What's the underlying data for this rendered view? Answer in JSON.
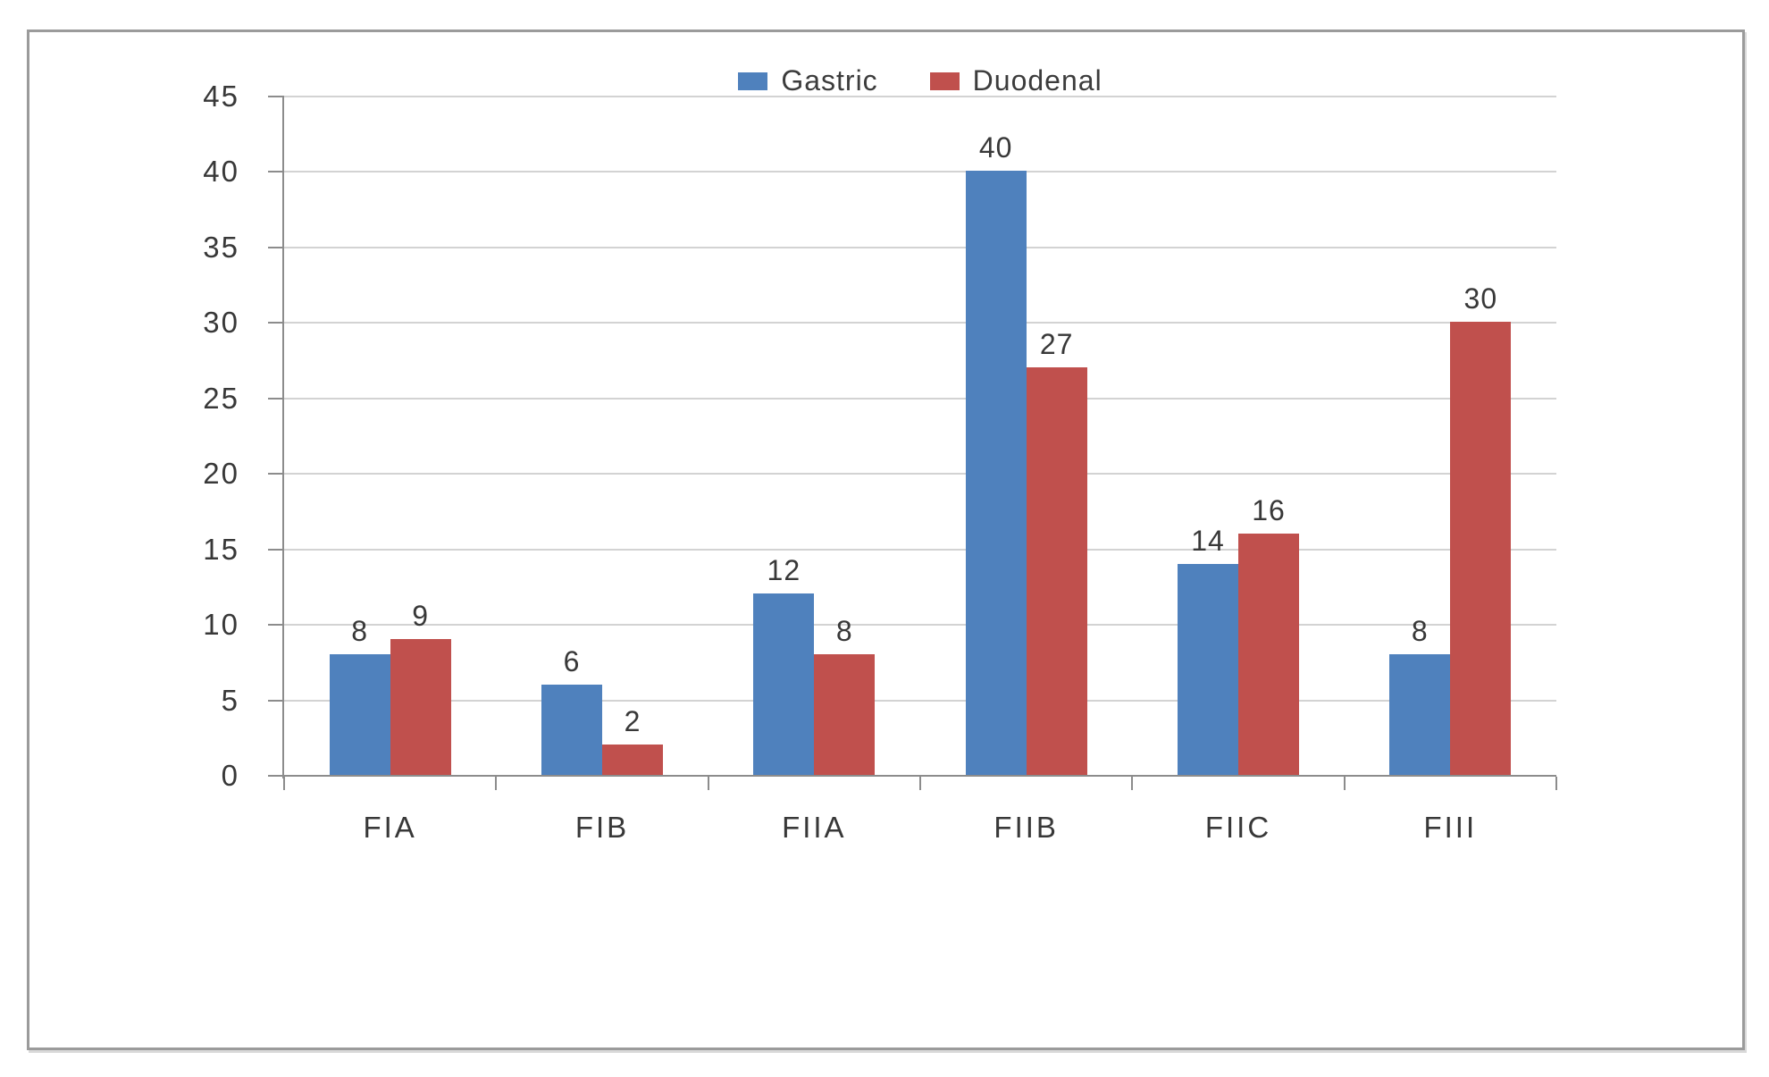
{
  "chart_data": {
    "type": "bar",
    "categories": [
      "FIA",
      "FIB",
      "FIIA",
      "FIIB",
      "FIIC",
      "FIII"
    ],
    "series": [
      {
        "name": "Gastric",
        "color": "#4F81BD",
        "values": [
          8,
          6,
          12,
          40,
          14,
          8
        ]
      },
      {
        "name": "Duodenal",
        "color": "#C0504D",
        "values": [
          9,
          2,
          8,
          27,
          16,
          30
        ]
      }
    ],
    "title": "",
    "xlabel": "",
    "ylabel": "",
    "ylim": [
      0,
      45
    ],
    "ytick_step": 5,
    "ytick_labels": [
      "0",
      "5",
      "10",
      "15",
      "20",
      "25",
      "30",
      "35",
      "40",
      "45"
    ],
    "grid": "horizontal",
    "data_labels": true,
    "legend_position": "top-center"
  },
  "colors": {
    "gastric_bar": "#4F81BD",
    "duodenal_bar": "#C0504D",
    "gridline": "#d3d3d3",
    "axis": "#8c8c8c",
    "text": "#383838",
    "frame_border": "#9b9b9b",
    "background": "#ffffff"
  }
}
